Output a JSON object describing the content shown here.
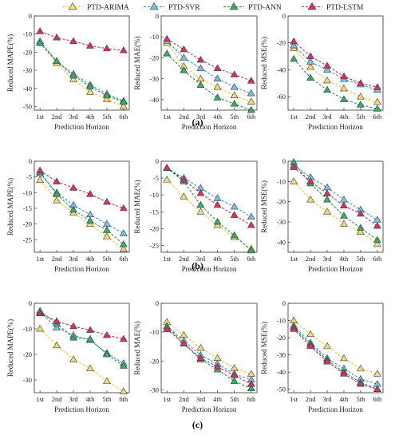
{
  "legend": [
    {
      "name": "PTD-ARIMA",
      "color": "#E8C21E",
      "fill": "#F2DA78"
    },
    {
      "name": "PTD-SVR",
      "color": "#1F8FD6",
      "fill": "#78C0EA"
    },
    {
      "name": "PTD-ANN",
      "color": "#178C48",
      "fill": "#3BAA62"
    },
    {
      "name": "PTD-LSTM",
      "color": "#C81E4A",
      "fill": "#D8325C"
    }
  ],
  "rows": [
    {
      "label": "(a)"
    },
    {
      "label": "(b)"
    },
    {
      "label": "(c)"
    }
  ],
  "chart_data": [
    {
      "type": "line",
      "panel": "a-mape",
      "ylabel": "Reduced MAPE(%)",
      "xlabel": "Prediction Horizon",
      "categories": [
        "1st",
        "2nd",
        "3rd",
        "4th",
        "5th",
        "6th"
      ],
      "ylim": [
        -52,
        0
      ],
      "yticks": [
        0,
        -10,
        -20,
        -30,
        -40,
        -50
      ],
      "series": [
        {
          "name": "PTD-ARIMA",
          "values": [
            -15,
            -26,
            -35,
            -42,
            -46,
            -50
          ]
        },
        {
          "name": "PTD-SVR",
          "values": [
            -14,
            -25,
            -32,
            -38,
            -43,
            -47
          ]
        },
        {
          "name": "PTD-ANN",
          "values": [
            -15,
            -25,
            -33,
            -39,
            -44,
            -47.5
          ]
        },
        {
          "name": "PTD-LSTM",
          "values": [
            -8.5,
            -12,
            -14,
            -16.5,
            -18,
            -19
          ]
        }
      ]
    },
    {
      "type": "line",
      "panel": "a-mae",
      "ylabel": "Reduced MAE(%)",
      "xlabel": "Prediction Horizon",
      "categories": [
        "1st",
        "2nd",
        "3rd",
        "4th",
        "5th",
        "6th"
      ],
      "ylim": [
        -45,
        0
      ],
      "yticks": [
        0,
        -10,
        -20,
        -30,
        -40
      ],
      "series": [
        {
          "name": "PTD-ARIMA",
          "values": [
            -13,
            -24,
            -30,
            -34,
            -38,
            -41
          ]
        },
        {
          "name": "PTD-SVR",
          "values": [
            -12,
            -20,
            -25,
            -30,
            -34,
            -37
          ]
        },
        {
          "name": "PTD-ANN",
          "values": [
            -18,
            -26,
            -33,
            -39,
            -42,
            -45
          ]
        },
        {
          "name": "PTD-LSTM",
          "values": [
            -11,
            -16,
            -21,
            -25,
            -28,
            -31
          ]
        }
      ]
    },
    {
      "type": "line",
      "panel": "a-mse",
      "ylabel": "Reduced MSE(%)",
      "xlabel": "Prediction Horizon",
      "categories": [
        "1st",
        "2nd",
        "3rd",
        "4th",
        "5th",
        "6th"
      ],
      "ylim": [
        -70,
        0
      ],
      "yticks": [
        0,
        -20,
        -40,
        -60
      ],
      "series": [
        {
          "name": "PTD-ARIMA",
          "values": [
            -24,
            -38,
            -48,
            -54,
            -60,
            -64
          ]
        },
        {
          "name": "PTD-SVR",
          "values": [
            -22,
            -34,
            -40,
            -47,
            -51,
            -55
          ]
        },
        {
          "name": "PTD-ANN",
          "values": [
            -32,
            -46,
            -55,
            -62,
            -66,
            -69
          ]
        },
        {
          "name": "PTD-LSTM",
          "values": [
            -19,
            -30,
            -37,
            -45,
            -50,
            -53
          ]
        }
      ]
    },
    {
      "type": "line",
      "panel": "b-mape",
      "ylabel": "Reduced MAPE(%)",
      "xlabel": "Prediction Horizon",
      "categories": [
        "1st",
        "2nd",
        "3rd",
        "4th",
        "5th",
        "6th"
      ],
      "ylim": [
        -29,
        0
      ],
      "yticks": [
        0,
        -5,
        -10,
        -15,
        -20,
        -25
      ],
      "series": [
        {
          "name": "PTD-ARIMA",
          "values": [
            -6,
            -12.5,
            -16.5,
            -20,
            -24,
            -28
          ]
        },
        {
          "name": "PTD-SVR",
          "values": [
            -4,
            -10,
            -14,
            -17,
            -20,
            -23
          ]
        },
        {
          "name": "PTD-ANN",
          "values": [
            -3.5,
            -10.5,
            -15.5,
            -19,
            -22,
            -26.5
          ]
        },
        {
          "name": "PTD-LSTM",
          "values": [
            -3,
            -6.5,
            -8.5,
            -10.5,
            -13,
            -15
          ]
        }
      ]
    },
    {
      "type": "line",
      "panel": "b-mae",
      "ylabel": "Reduced MAE(%)",
      "xlabel": "Prediction Horizon",
      "categories": [
        "1st",
        "2nd",
        "3rd",
        "4th",
        "5th",
        "6th"
      ],
      "ylim": [
        -27,
        0
      ],
      "yticks": [
        0,
        -5,
        -10,
        -15,
        -20,
        -25
      ],
      "series": [
        {
          "name": "PTD-ARIMA",
          "values": [
            -5.5,
            -10.5,
            -15,
            -19,
            -22.5,
            -26
          ]
        },
        {
          "name": "PTD-SVR",
          "values": [
            -2,
            -5,
            -8,
            -11,
            -13.5,
            -16.5
          ]
        },
        {
          "name": "PTD-ANN",
          "values": [
            -2,
            -6,
            -13,
            -18,
            -22,
            -26.5
          ]
        },
        {
          "name": "PTD-LSTM",
          "values": [
            -2,
            -5.5,
            -9.5,
            -13,
            -16,
            -19
          ]
        }
      ]
    },
    {
      "type": "line",
      "panel": "b-mse",
      "ylabel": "Reduced MSE(%)",
      "xlabel": "Prediction Horizon",
      "categories": [
        "1st",
        "2nd",
        "3rd",
        "4th",
        "5th",
        "6th"
      ],
      "ylim": [
        -45,
        0
      ],
      "yticks": [
        0,
        -10,
        -20,
        -30,
        -40
      ],
      "series": [
        {
          "name": "PTD-ARIMA",
          "values": [
            -10,
            -19,
            -25,
            -31,
            -35,
            -41
          ]
        },
        {
          "name": "PTD-SVR",
          "values": [
            -2,
            -8,
            -13,
            -19,
            -24,
            -29
          ]
        },
        {
          "name": "PTD-ANN",
          "values": [
            -0.5,
            -11,
            -19,
            -27,
            -33,
            -39
          ]
        },
        {
          "name": "PTD-LSTM",
          "values": [
            -3,
            -10,
            -16,
            -22,
            -26,
            -32
          ]
        }
      ]
    },
    {
      "type": "line",
      "panel": "c-mape",
      "ylabel": "Reduced MAPE(%)",
      "xlabel": "Prediction Horizon",
      "categories": [
        "1st",
        "2nd",
        "3rd",
        "4th",
        "5th",
        "6th"
      ],
      "ylim": [
        -35,
        0
      ],
      "yticks": [
        0,
        -10,
        -20,
        -30
      ],
      "series": [
        {
          "name": "PTD-ARIMA",
          "values": [
            -10,
            -16.5,
            -22,
            -25.5,
            -30.5,
            -34.5
          ]
        },
        {
          "name": "PTD-SVR",
          "values": [
            -3.5,
            -9.5,
            -12.5,
            -14.5,
            -19.5,
            -23.5
          ]
        },
        {
          "name": "PTD-ANN",
          "values": [
            -3,
            -8,
            -13.5,
            -14,
            -20,
            -24.5
          ]
        },
        {
          "name": "PTD-LSTM",
          "values": [
            -4,
            -7,
            -9,
            -10.5,
            -12.5,
            -14
          ]
        }
      ]
    },
    {
      "type": "line",
      "panel": "c-mae",
      "ylabel": "Reduced MAE(%)",
      "xlabel": "Prediction Horizon",
      "categories": [
        "1st",
        "2nd",
        "3rd",
        "4th",
        "5th",
        "6th"
      ],
      "ylim": [
        -31,
        0
      ],
      "yticks": [
        0,
        -10,
        -20,
        -30
      ],
      "series": [
        {
          "name": "PTD-ARIMA",
          "values": [
            -6.5,
            -11,
            -15.5,
            -19,
            -22.5,
            -24.5
          ]
        },
        {
          "name": "PTD-SVR",
          "values": [
            -8,
            -13,
            -18,
            -21,
            -24.5,
            -26.5
          ]
        },
        {
          "name": "PTD-ANN",
          "values": [
            -8,
            -14,
            -19.5,
            -23,
            -27,
            -29.5
          ]
        },
        {
          "name": "PTD-LSTM",
          "values": [
            -9,
            -14,
            -19,
            -22,
            -25,
            -28
          ]
        }
      ]
    },
    {
      "type": "line",
      "panel": "c-mse",
      "ylabel": "Reduced MSE(%)",
      "xlabel": "Prediction Horizon",
      "categories": [
        "1st",
        "2nd",
        "3rd",
        "4th",
        "5th",
        "6th"
      ],
      "ylim": [
        -52,
        0
      ],
      "yticks": [
        0,
        -10,
        -20,
        -30,
        -40,
        -50
      ],
      "series": [
        {
          "name": "PTD-ARIMA",
          "values": [
            -10,
            -18,
            -25,
            -32,
            -38,
            -41
          ]
        },
        {
          "name": "PTD-SVR",
          "values": [
            -13,
            -23,
            -32,
            -38,
            -44,
            -47
          ]
        },
        {
          "name": "PTD-ANN",
          "values": [
            -14,
            -24,
            -33,
            -40,
            -46,
            -50
          ]
        },
        {
          "name": "PTD-LSTM",
          "values": [
            -15,
            -25,
            -34,
            -41,
            -47,
            -50
          ]
        }
      ]
    }
  ]
}
